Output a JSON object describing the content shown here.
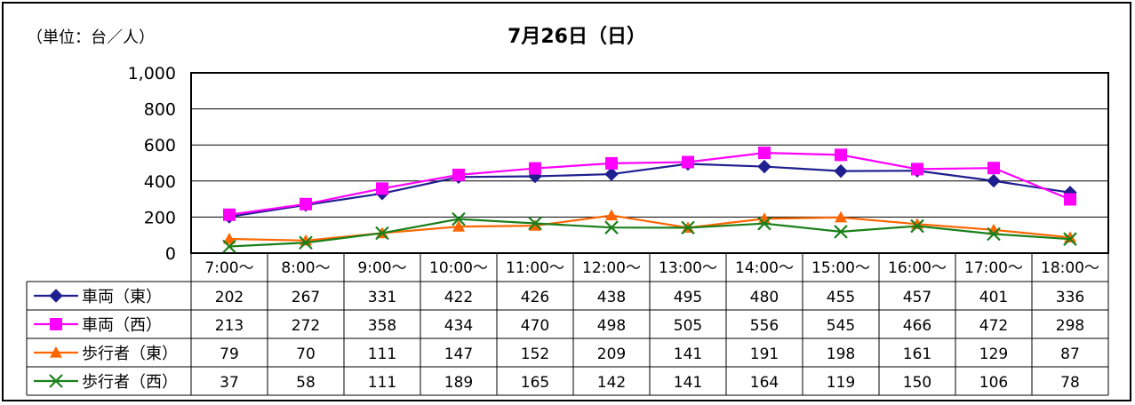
{
  "chart_data": {
    "type": "line",
    "title": "7月26日（日）",
    "unit_label": "（単位：台／人）",
    "categories": [
      "7:00～",
      "8:00～",
      "9:00～",
      "10:00～",
      "11:00～",
      "12:00～",
      "13:00～",
      "14:00～",
      "15:00～",
      "16:00～",
      "17:00～",
      "18:00～"
    ],
    "ylim": [
      0,
      1000
    ],
    "yticks": [
      "0",
      "200",
      "400",
      "600",
      "800",
      "1,000"
    ],
    "grid": true,
    "legend_placement": "table-left",
    "series": [
      {
        "name": "車両（東）",
        "color": "#1f1f8f",
        "marker": "diamond",
        "values": [
          202,
          267,
          331,
          422,
          426,
          438,
          495,
          480,
          455,
          457,
          401,
          336
        ]
      },
      {
        "name": "車両（西）",
        "color": "#ff00ff",
        "marker": "square",
        "values": [
          213,
          272,
          358,
          434,
          470,
          498,
          505,
          556,
          545,
          466,
          472,
          298
        ]
      },
      {
        "name": "歩行者（東）",
        "color": "#ff6600",
        "marker": "triangle",
        "values": [
          79,
          70,
          111,
          147,
          152,
          209,
          141,
          191,
          198,
          161,
          129,
          87
        ]
      },
      {
        "name": "歩行者（西）",
        "color": "#1a7f1a",
        "marker": "x",
        "values": [
          37,
          58,
          111,
          189,
          165,
          142,
          141,
          164,
          119,
          150,
          106,
          78
        ]
      }
    ]
  }
}
